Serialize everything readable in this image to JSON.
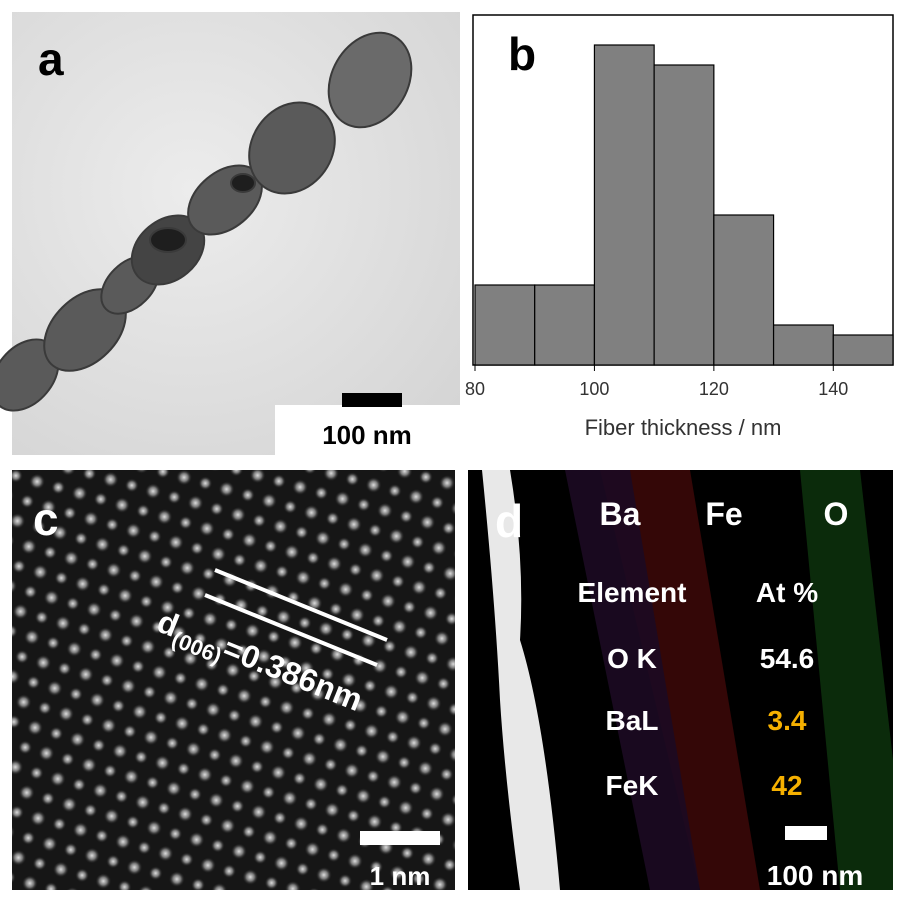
{
  "panels": {
    "a": {
      "label": "a",
      "scale_bar": "100 nm"
    },
    "c": {
      "label": "c",
      "d_symbol": "d",
      "d_index": "(006)",
      "d_value": "=0.386nm",
      "scale_bar": "1 nm"
    },
    "d": {
      "label": "d",
      "maps": [
        "Ba",
        "Fe",
        "O"
      ],
      "table": {
        "header": [
          "Element",
          "At %"
        ],
        "rows": [
          [
            "O K",
            "54.6"
          ],
          [
            "BaL",
            "3.4"
          ],
          [
            "FeK",
            "42"
          ]
        ]
      },
      "scale_bar": "100 nm"
    }
  },
  "chart_data": {
    "type": "histogram",
    "label": "b",
    "xlabel": "Fiber thickness / nm",
    "bins": [
      80,
      90,
      100,
      110,
      120,
      130,
      140,
      150
    ],
    "values": [
      8,
      8,
      32,
      30,
      15,
      4,
      3
    ],
    "color": "#808080",
    "xlim": [
      80,
      150
    ],
    "ylim": [
      0,
      35
    ],
    "xticks": [
      80,
      100,
      120,
      140
    ]
  }
}
